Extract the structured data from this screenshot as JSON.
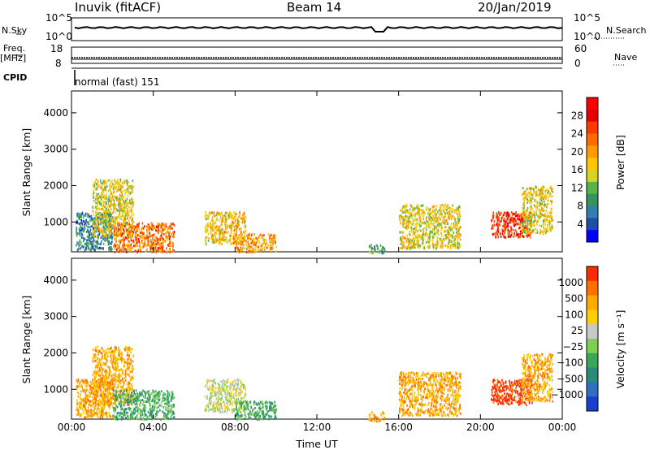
{
  "header": {
    "station": "Inuvik (fitACF)",
    "beam": "Beam 14",
    "date": "20/Jan/2019"
  },
  "status_panel": {
    "nsky_label": "N.Sky",
    "nsearch_label": "N.Search",
    "freq_label": "Freq.",
    "freq_unit": "[MHz]",
    "nave_label": "Nave",
    "cpid_label": "CPID",
    "cpid_value": "normal (fast) 151",
    "noise_ticks": [
      "10^5",
      "10^0"
    ],
    "freq_ticks": [
      "18",
      "8"
    ],
    "nave_ticks": [
      "60",
      "0"
    ]
  },
  "chart_data": [
    {
      "type": "heatmap",
      "name": "power",
      "xlabel": "",
      "ylabel": "Slant Range [km]",
      "x_ticks": [
        "00:00",
        "04:00",
        "08:00",
        "12:00",
        "16:00",
        "20:00",
        "00:00"
      ],
      "y_ticks": [
        1000,
        2000,
        3000,
        4000
      ],
      "xlim": [
        0,
        24
      ],
      "ylim": [
        180,
        4600
      ],
      "colorbar_label": "Power [dB]",
      "colorbar_ticks": [
        "28",
        "24",
        "20",
        "16",
        "12",
        "8",
        "4"
      ],
      "colorbar_colors": [
        "#0000ff",
        "#1f4fa8",
        "#2f7fb0",
        "#35935c",
        "#58b446",
        "#d8d424",
        "#ffc500",
        "#ff9a00",
        "#ff6a00",
        "#ff3a00",
        "#e80000",
        "#ff0000"
      ],
      "scatter_regions": [
        {
          "x": [
            0.2,
            2.0
          ],
          "y": [
            250,
            1300
          ],
          "power": 8
        },
        {
          "x": [
            1.0,
            3.0
          ],
          "y": [
            600,
            2200
          ],
          "power": 16
        },
        {
          "x": [
            2.0,
            5.0
          ],
          "y": [
            200,
            1000
          ],
          "power": 22
        },
        {
          "x": [
            6.5,
            8.5
          ],
          "y": [
            400,
            1300
          ],
          "power": 18
        },
        {
          "x": [
            8.0,
            10.0
          ],
          "y": [
            200,
            700
          ],
          "power": 20
        },
        {
          "x": [
            14.5,
            15.3
          ],
          "y": [
            150,
            400
          ],
          "power": 10
        },
        {
          "x": [
            16.0,
            19.0
          ],
          "y": [
            300,
            1500
          ],
          "power": 16
        },
        {
          "x": [
            20.5,
            22.5
          ],
          "y": [
            600,
            1300
          ],
          "power": 26
        },
        {
          "x": [
            22.0,
            23.5
          ],
          "y": [
            700,
            2000
          ],
          "power": 16
        }
      ]
    },
    {
      "type": "heatmap",
      "name": "velocity",
      "xlabel": "Time UT",
      "ylabel": "Slant Range [km]",
      "x_ticks": [
        "00:00",
        "04:00",
        "08:00",
        "12:00",
        "16:00",
        "20:00",
        "00:00"
      ],
      "y_ticks": [
        1000,
        2000,
        3000,
        4000
      ],
      "xlim": [
        0,
        24
      ],
      "ylim": [
        180,
        4600
      ],
      "colorbar_label": "Velocity [m s⁻¹]",
      "colorbar_ticks": [
        "1000",
        "500",
        "100",
        "25",
        "−25",
        "−100",
        "−500",
        "−1000"
      ],
      "colorbar_colors": [
        "#1a3fd0",
        "#2e6fbf",
        "#2c8a7a",
        "#3aa65a",
        "#7fcf4f",
        "#c8c8c8",
        "#ffd000",
        "#ffaa00",
        "#ff7000",
        "#ff2a00"
      ],
      "scatter_regions": [
        {
          "x": [
            0.2,
            2.0
          ],
          "y": [
            250,
            1300
          ],
          "velocity": -100
        },
        {
          "x": [
            1.0,
            3.0
          ],
          "y": [
            600,
            2200
          ],
          "velocity": -100
        },
        {
          "x": [
            2.0,
            5.0
          ],
          "y": [
            200,
            1000
          ],
          "velocity": 100
        },
        {
          "x": [
            6.5,
            8.5
          ],
          "y": [
            400,
            1300
          ],
          "velocity": 0
        },
        {
          "x": [
            8.0,
            10.0
          ],
          "y": [
            200,
            700
          ],
          "velocity": 100
        },
        {
          "x": [
            14.5,
            15.3
          ],
          "y": [
            150,
            400
          ],
          "velocity": -100
        },
        {
          "x": [
            16.0,
            19.0
          ],
          "y": [
            300,
            1500
          ],
          "velocity": -100
        },
        {
          "x": [
            20.5,
            22.5
          ],
          "y": [
            600,
            1300
          ],
          "velocity": -500
        },
        {
          "x": [
            22.0,
            23.5
          ],
          "y": [
            700,
            2000
          ],
          "velocity": -100
        }
      ]
    }
  ]
}
